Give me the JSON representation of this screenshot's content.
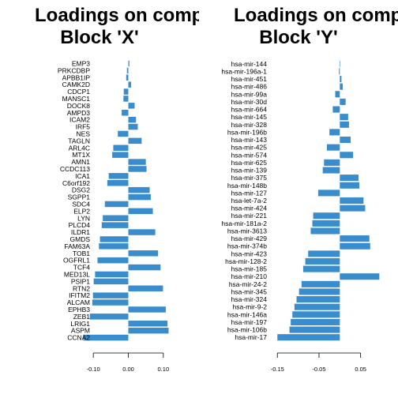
{
  "chart_data": [
    {
      "type": "bar",
      "orientation": "horizontal",
      "title_line1": "Loadings on comp",
      "title_line2": "Block 'X'",
      "xlabel": "",
      "ylabel": "",
      "xlim": [
        -0.15,
        0.15
      ],
      "xticks": [
        -0.1,
        0.0,
        0.1
      ],
      "xtick_labels": [
        "-0.10",
        "0.00",
        "0.10"
      ],
      "grid": false,
      "color": "#3a8dcc",
      "labels": [
        "EMP3",
        "PRKCDBP",
        "APBB1IP",
        "CAMK2D",
        "CDCP1",
        "MANSC1",
        "DOCK8",
        "AMPD3",
        "ICAM2",
        "IRF5",
        "NES",
        "TAGLN",
        "ARL4C",
        "MT1X",
        "AMN1",
        "CCDC113",
        "ICA1",
        "C6orf192",
        "DSG2",
        "SGPP1",
        "SDC4",
        "ELP2",
        "LYN",
        "PLCD4",
        "ILDR1",
        "GMDS",
        "FAM63A",
        "TOB1",
        "OGFRL1",
        "TCF4",
        "MED13L",
        "PSIP1",
        "RTN2",
        "IFITM2",
        "ALCAM",
        "EPHB3",
        "ZEB1",
        "LRIG1",
        "ASPM",
        "CCNA2"
      ],
      "values": [
        0.003,
        -0.004,
        -0.006,
        0.008,
        -0.013,
        -0.014,
        0.018,
        -0.019,
        0.022,
        0.027,
        -0.03,
        0.038,
        -0.043,
        -0.046,
        0.05,
        0.052,
        -0.056,
        -0.06,
        0.061,
        0.064,
        -0.067,
        0.07,
        -0.073,
        -0.076,
        0.077,
        -0.081,
        -0.084,
        0.085,
        -0.088,
        0.092,
        -0.095,
        -0.099,
        0.099,
        -0.101,
        -0.103,
        0.107,
        -0.11,
        0.112,
        0.115,
        -0.129
      ]
    },
    {
      "type": "bar",
      "orientation": "horizontal",
      "title_line1": "Loadings on comp",
      "title_line2": "Block 'Y'",
      "xlabel": "",
      "ylabel": "",
      "xlim": [
        -0.16,
        0.1
      ],
      "xticks": [
        -0.15,
        -0.05,
        0.05
      ],
      "xtick_labels": [
        "-0.15",
        "-0.05",
        "0.05"
      ],
      "grid": false,
      "color": "#3a8dcc",
      "labels": [
        "hsa-mir-144",
        "hsa-mir-196a-1",
        "hsa-mir-451",
        "hsa-mir-486",
        "hsa-mir-99a",
        "hsa-mir-30d",
        "hsa-mir-664",
        "hsa-mir-145",
        "hsa-mir-328",
        "hsa-mir-196b",
        "hsa-mir-143",
        "hsa-mir-425",
        "hsa-mir-574",
        "hsa-mir-625",
        "hsa-mir-139",
        "hsa-mir-375",
        "hsa-mir-148b",
        "hsa-mir-127",
        "hsa-let-7a-2",
        "hsa-mir-424",
        "hsa-mir-221",
        "hsa-mir-181a-2",
        "hsa-mir-3613",
        "hsa-mir-429",
        "hsa-mir-374b",
        "hsa-mir-423",
        "hsa-mir-128-2",
        "hsa-mir-185",
        "hsa-mir-210",
        "hsa-mir-24-2",
        "hsa-mir-345",
        "hsa-mir-324",
        "hsa-mir-9-2",
        "hsa-mir-146a",
        "hsa-mir-197",
        "hsa-mir-106b",
        "hsa-mir-17"
      ],
      "values": [
        0.001,
        -0.002,
        0.004,
        0.007,
        -0.011,
        0.014,
        -0.017,
        0.02,
        0.022,
        -0.025,
        0.026,
        -0.031,
        0.032,
        -0.038,
        -0.041,
        0.045,
        0.047,
        -0.052,
        0.057,
        0.061,
        -0.064,
        -0.066,
        -0.07,
        0.071,
        0.073,
        -0.076,
        -0.083,
        -0.088,
        0.095,
        -0.092,
        -0.098,
        -0.104,
        -0.109,
        -0.114,
        -0.118,
        -0.121,
        -0.15
      ]
    }
  ]
}
